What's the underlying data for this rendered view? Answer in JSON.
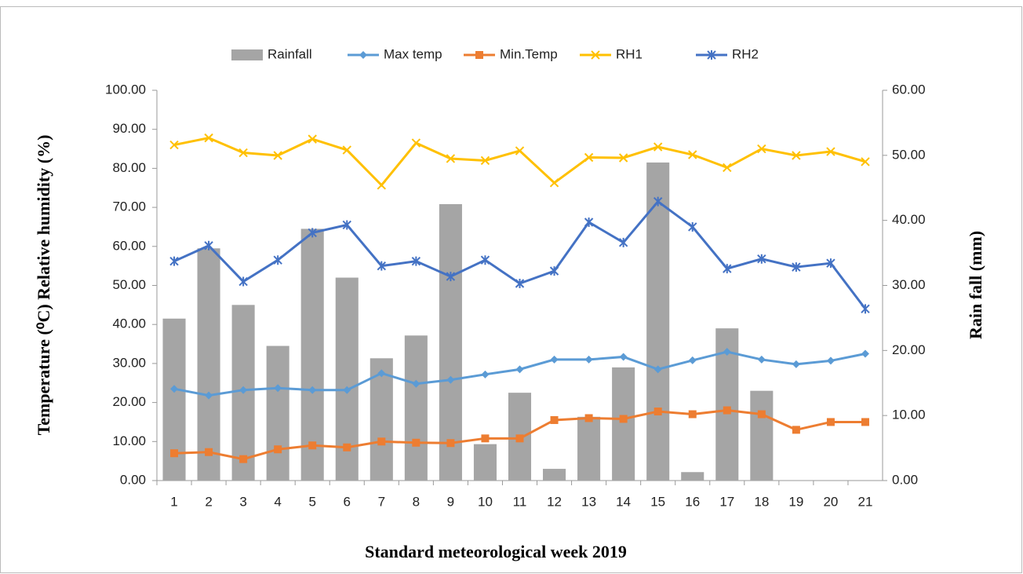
{
  "chart_data": {
    "type": "combo",
    "x_label": "Standard meteorological week 2019",
    "y_label": "Temperature (⁰C)  Relative humidity (%)",
    "y2_label": "Rain fall (mm)",
    "categories": [
      1,
      2,
      3,
      4,
      5,
      6,
      7,
      8,
      9,
      10,
      11,
      12,
      13,
      14,
      15,
      16,
      17,
      18,
      19,
      20,
      21
    ],
    "ylim": [
      0,
      100
    ],
    "yticks": [
      {
        "value": 0,
        "label": "0.00"
      },
      {
        "value": 10,
        "label": "10.00"
      },
      {
        "value": 20,
        "label": "20.00"
      },
      {
        "value": 30,
        "label": "30.00"
      },
      {
        "value": 40,
        "label": "40.00"
      },
      {
        "value": 50,
        "label": "50.00"
      },
      {
        "value": 60,
        "label": "60.00"
      },
      {
        "value": 70,
        "label": "70.00"
      },
      {
        "value": 80,
        "label": "80.00"
      },
      {
        "value": 90,
        "label": "90.00"
      },
      {
        "value": 100,
        "label": "100.00"
      }
    ],
    "y2lim": [
      0,
      60
    ],
    "y2ticks": [
      {
        "value": 0,
        "label": "0.00"
      },
      {
        "value": 10,
        "label": "10.00"
      },
      {
        "value": 20,
        "label": "20.00"
      },
      {
        "value": 30,
        "label": "30.00"
      },
      {
        "value": 40,
        "label": "40.00"
      },
      {
        "value": 50,
        "label": "50.00"
      },
      {
        "value": 60,
        "label": "60.00"
      }
    ],
    "legend": "top",
    "series": [
      {
        "name": "Rainfall",
        "type": "bar",
        "axis": "y2",
        "color": "#a5a5a5",
        "values": [
          24.9,
          35.7,
          27.0,
          20.7,
          38.7,
          31.2,
          18.8,
          22.3,
          42.5,
          5.6,
          13.5,
          1.8,
          9.8,
          17.4,
          48.9,
          1.3,
          23.4,
          13.8,
          0,
          0,
          0
        ]
      },
      {
        "name": "Max temp",
        "type": "line",
        "marker": "diamond",
        "color": "#5b9bd5",
        "values": [
          23.5,
          21.8,
          23.2,
          23.7,
          23.2,
          23.2,
          27.5,
          24.8,
          25.8,
          27.2,
          28.5,
          31.0,
          31.0,
          31.7,
          28.5,
          30.8,
          33.0,
          31.0,
          29.8,
          30.7,
          32.5
        ]
      },
      {
        "name": "Min.Temp",
        "type": "line",
        "marker": "square",
        "color": "#ed7d31",
        "values": [
          7.0,
          7.3,
          5.5,
          8.0,
          9.0,
          8.5,
          10.0,
          9.7,
          9.6,
          10.8,
          10.8,
          15.5,
          16.0,
          15.8,
          17.7,
          17.0,
          18.0,
          17.0,
          13.0,
          15.0,
          15.0
        ]
      },
      {
        "name": "RH1",
        "type": "line",
        "marker": "x",
        "color": "#ffc000",
        "values": [
          86.0,
          87.8,
          84.0,
          83.3,
          87.5,
          84.7,
          75.7,
          86.5,
          82.5,
          82.0,
          84.5,
          76.3,
          82.8,
          82.7,
          85.5,
          83.5,
          80.2,
          85.0,
          83.3,
          84.3,
          81.7
        ]
      },
      {
        "name": "RH2",
        "type": "line",
        "marker": "star",
        "color": "#4472c4",
        "values": [
          56.2,
          60.2,
          51.0,
          56.5,
          63.5,
          65.5,
          55.0,
          56.2,
          52.3,
          56.5,
          50.5,
          53.7,
          66.2,
          61.0,
          71.5,
          65.0,
          54.3,
          56.8,
          54.7,
          55.7,
          44.0
        ]
      }
    ]
  }
}
